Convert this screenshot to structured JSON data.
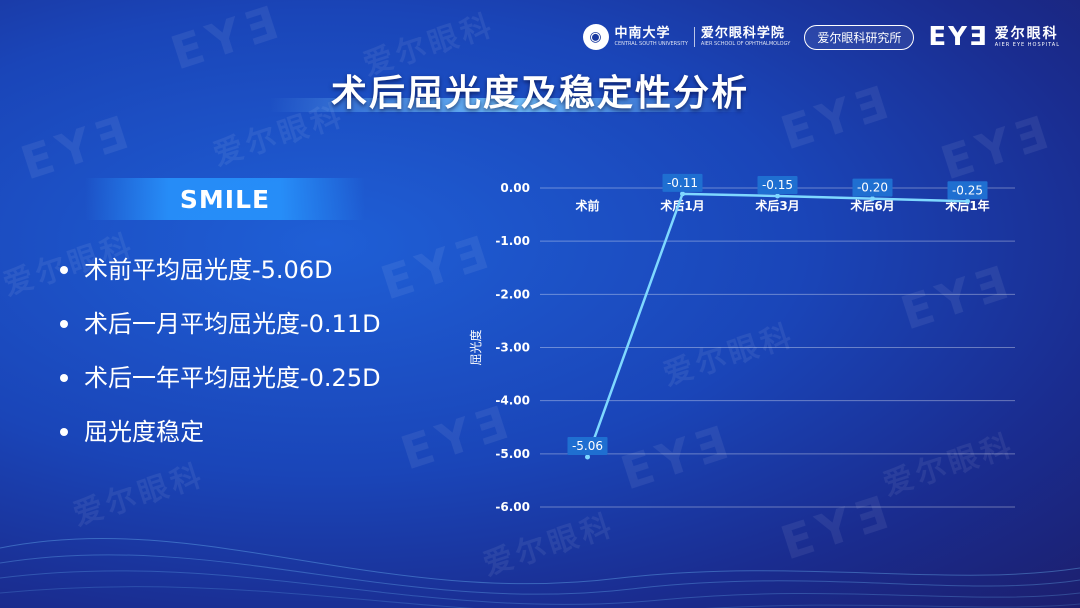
{
  "header": {
    "csu_name_cn": "中南大学",
    "csu_name_en": "CENTRAL SOUTH UNIVERSITY",
    "school_cn": "爱尔眼科学院",
    "school_en": "AIER SCHOOL OF OPHTHALMOLOGY",
    "institute": "爱尔眼科研究所",
    "brand_mark": "EYƎ",
    "brand_cn": "爱尔眼科",
    "brand_en": "AIER EYE HOSPITAL"
  },
  "title": "术后屈光度及稳定性分析",
  "section_label": "SMILE",
  "bullets": [
    "术前平均屈光度-5.06D",
    "术后一月平均屈光度-0.11D",
    "术后一年平均屈光度-0.25D",
    "屈光度稳定"
  ],
  "watermark": {
    "mark": "EYƎ",
    "cn": "爱尔眼科"
  },
  "colors": {
    "line": "#7fd8ff",
    "grid": "rgba(255,255,255,0.35)",
    "label_bg": "#1f6fd1"
  },
  "chart_data": {
    "type": "line",
    "categories": [
      "术前",
      "术后1月",
      "术后3月",
      "术后6月",
      "术后1年"
    ],
    "series": [
      {
        "values": [
          -5.06,
          -0.11,
          -0.15,
          -0.2,
          -0.25
        ]
      }
    ],
    "data_labels": [
      "-5.06",
      "-0.11",
      "-0.15",
      "-0.20",
      "-0.25"
    ],
    "ylabel": "屈光度",
    "ylim": [
      -6.0,
      0.0
    ],
    "yticks": [
      "0.00",
      "-1.00",
      "-2.00",
      "-3.00",
      "-4.00",
      "-5.00",
      "-6.00"
    ],
    "ytick_values": [
      0,
      -1,
      -2,
      -3,
      -4,
      -5,
      -6
    ],
    "grid": true
  }
}
